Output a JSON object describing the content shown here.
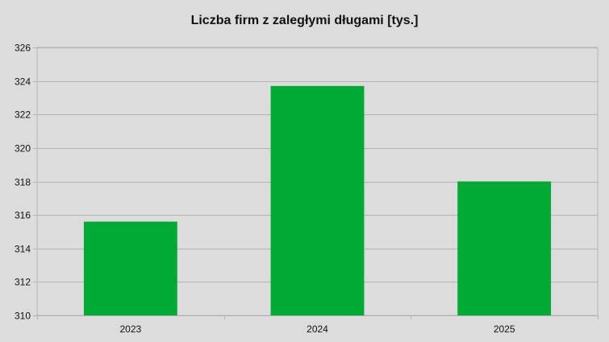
{
  "chart_data": {
    "type": "bar",
    "title": "Liczba firm z zaległymi długami [tys.]",
    "categories": [
      "2023",
      "2024",
      "2025"
    ],
    "values": [
      315.6,
      323.7,
      318.0
    ],
    "ylim": [
      310,
      326
    ],
    "yticks": [
      "310",
      "312",
      "314",
      "316",
      "318",
      "320",
      "322",
      "324",
      "326"
    ],
    "xlabel": "",
    "ylabel": "",
    "grid": true,
    "legend": "none",
    "bar_color": "#00a933",
    "grid_color": "#b3b3b3",
    "background_color": "#dcdcdc"
  }
}
